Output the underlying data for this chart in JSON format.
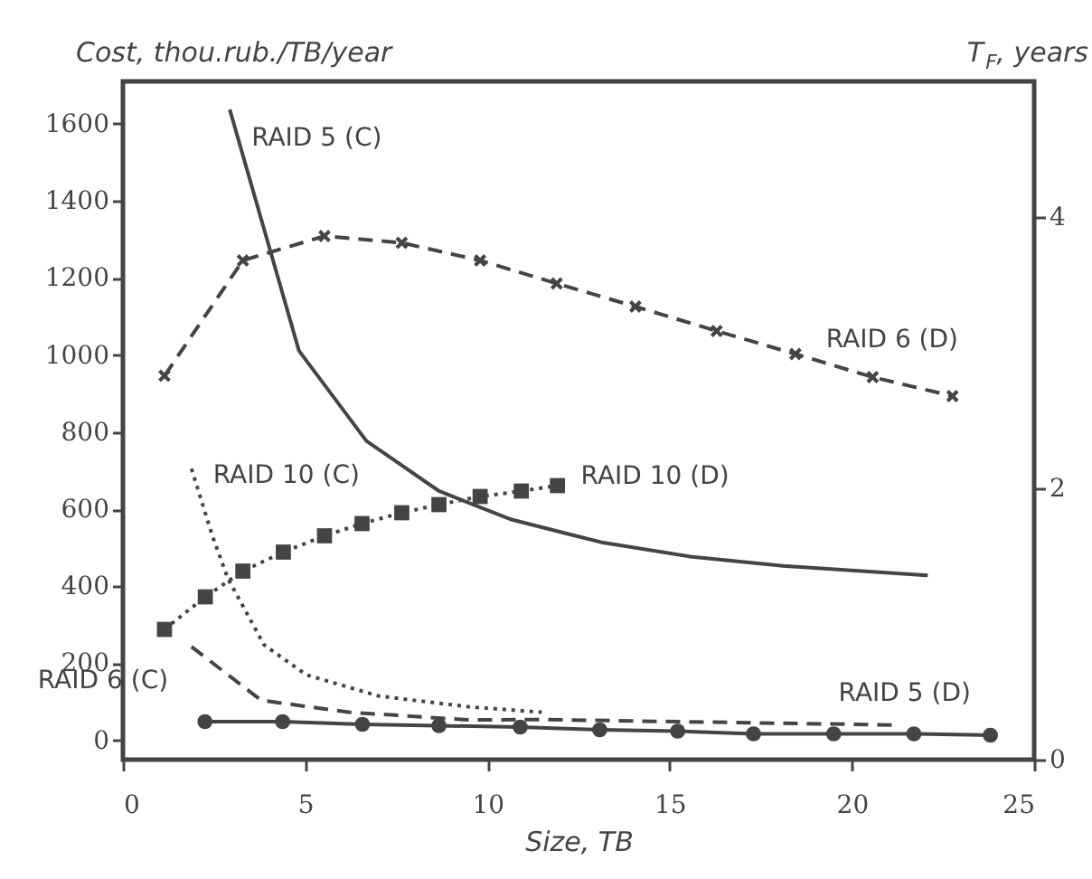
{
  "chart_data": {
    "type": "line",
    "xlabel": "Size, TB",
    "ylabel": "Cost, thou.rub./TB/year",
    "y2label": "T$_{F}$, years",
    "xlim": [
      0,
      25
    ],
    "xticks": [
      0,
      5,
      10,
      15,
      20,
      25
    ],
    "ylim": [
      -50,
      1710
    ],
    "yticks": [
      0,
      200,
      400,
      600,
      800,
      1000,
      1200,
      1400,
      1600
    ],
    "y2lim": [
      0,
      5
    ],
    "y2ticks": [
      0,
      2,
      4
    ],
    "grid": false,
    "series": [
      {
        "name": "RAID 5 (C)",
        "color": "#444444",
        "line_style": "solid",
        "marker": "none",
        "x": [
          2.93,
          4.83,
          6.68,
          8.67,
          10.66,
          12.49,
          13.13,
          15.62,
          18.11,
          22.08
        ],
        "values": [
          1637,
          1011,
          777,
          647,
          573,
          529,
          514,
          476,
          453,
          428
        ]
      },
      {
        "name": "RAID 10 (C)",
        "color": "#444444",
        "line_style": "dotted",
        "marker": "none",
        "x": [
          1.88,
          2.46,
          2.88,
          3.87,
          5.03,
          7.02,
          9.5,
          11.49
        ],
        "values": [
          705,
          529,
          420,
          248,
          170,
          115,
          87,
          73
        ]
      },
      {
        "name": "RAID 6 (C)",
        "color": "#444444",
        "line_style": "dashed",
        "marker": "none",
        "x": [
          1.88,
          3.79,
          6.19,
          9.5,
          11.5,
          21.1
        ],
        "values": [
          243,
          104,
          73,
          53,
          54,
          40
        ]
      },
      {
        "name": "RAID 5 (D)",
        "color": "#444444",
        "line_style": "solid",
        "marker": "circle",
        "axis": "y2",
        "x": [
          2.25,
          4.38,
          6.57,
          8.67,
          10.9,
          13.08,
          15.22,
          17.3,
          19.5,
          21.7,
          23.8
        ],
        "values": [
          0.28,
          0.28,
          0.26,
          0.25,
          0.24,
          0.22,
          0.21,
          0.19,
          0.19,
          0.19,
          0.18
        ]
      },
      {
        "name": "RAID 10 (D)",
        "color": "#444444",
        "line_style": "dotted",
        "marker": "square",
        "axis": "y2",
        "x": [
          1.14,
          2.26,
          3.29,
          4.4,
          5.53,
          6.56,
          7.65,
          8.67,
          9.8,
          10.93,
          11.92
        ],
        "values": [
          0.96,
          1.2,
          1.39,
          1.53,
          1.65,
          1.74,
          1.82,
          1.88,
          1.94,
          1.98,
          2.02
        ]
      },
      {
        "name": "RAID 6 (D)",
        "color": "#444444",
        "line_style": "dashed",
        "marker": "cross",
        "axis": "y2",
        "x": [
          1.14,
          3.29,
          5.53,
          7.65,
          9.8,
          11.9,
          14.06,
          16.29,
          18.45,
          20.57,
          22.76
        ],
        "values": [
          2.83,
          3.68,
          3.86,
          3.81,
          3.68,
          3.51,
          3.34,
          3.16,
          2.99,
          2.82,
          2.68
        ]
      }
    ]
  }
}
